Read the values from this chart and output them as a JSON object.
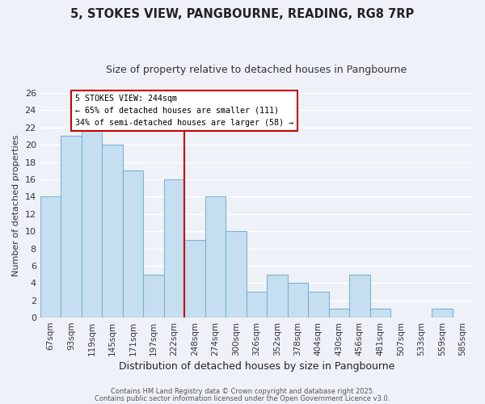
{
  "title": "5, STOKES VIEW, PANGBOURNE, READING, RG8 7RP",
  "subtitle": "Size of property relative to detached houses in Pangbourne",
  "xlabel": "Distribution of detached houses by size in Pangbourne",
  "ylabel": "Number of detached properties",
  "categories": [
    "67sqm",
    "93sqm",
    "119sqm",
    "145sqm",
    "171sqm",
    "197sqm",
    "222sqm",
    "248sqm",
    "274sqm",
    "300sqm",
    "326sqm",
    "352sqm",
    "378sqm",
    "404sqm",
    "430sqm",
    "456sqm",
    "481sqm",
    "507sqm",
    "533sqm",
    "559sqm",
    "585sqm"
  ],
  "values": [
    14,
    21,
    22,
    20,
    17,
    5,
    16,
    9,
    14,
    10,
    3,
    5,
    4,
    3,
    1,
    5,
    1,
    0,
    0,
    1,
    0
  ],
  "bar_color": "#c6dff0",
  "bar_edge_color": "#7ab3d3",
  "marker_label": "5 STOKES VIEW: 244sqm",
  "annotation_line1": "← 65% of detached houses are smaller (111)",
  "annotation_line2": "34% of semi-detached houses are larger (58) →",
  "marker_color": "#cc0000",
  "ylim": [
    0,
    26
  ],
  "yticks": [
    0,
    2,
    4,
    6,
    8,
    10,
    12,
    14,
    16,
    18,
    20,
    22,
    24,
    26
  ],
  "background_color": "#eef2f8",
  "grid_color": "#ffffff",
  "footnote1": "Contains HM Land Registry data © Crown copyright and database right 2025.",
  "footnote2": "Contains public sector information licensed under the Open Government Licence v3.0."
}
